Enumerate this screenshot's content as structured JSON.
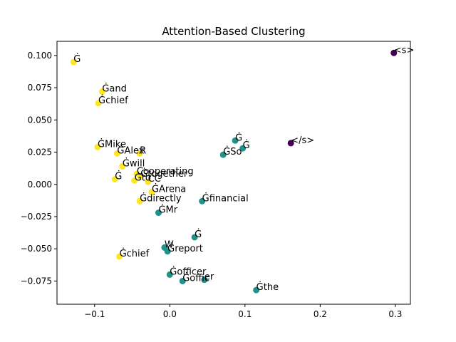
{
  "chart_data": {
    "type": "scatter",
    "title": "Attention-Based Clustering",
    "xlabel": "",
    "ylabel": "",
    "xlim": [
      -0.15,
      0.32
    ],
    "ylim": [
      -0.093,
      0.111
    ],
    "xticks": [
      -0.1,
      0.0,
      0.1,
      0.2,
      0.3
    ],
    "xtick_labels": [
      "−0.1",
      "0.0",
      "0.1",
      "0.2",
      "0.3"
    ],
    "yticks": [
      -0.075,
      -0.05,
      -0.025,
      0.0,
      0.025,
      0.05,
      0.075,
      0.1
    ],
    "ytick_labels": [
      "−0.075",
      "−0.050",
      "−0.025",
      "0.000",
      "0.025",
      "0.050",
      "0.075",
      "0.100"
    ],
    "grid": false,
    "cluster_colors": {
      "0": "#440154",
      "1": "#21918c",
      "2": "#fde725"
    },
    "points": [
      {
        "x": 0.298,
        "y": 0.102,
        "label": "<s>",
        "cluster": 0
      },
      {
        "x": 0.161,
        "y": 0.032,
        "label": "</s>",
        "cluster": 0
      },
      {
        "x": -0.128,
        "y": 0.095,
        "label": "Ġ",
        "cluster": 2
      },
      {
        "x": -0.09,
        "y": 0.072,
        "label": "Ġand",
        "cluster": 2
      },
      {
        "x": -0.095,
        "y": 0.063,
        "label": "Ġchief",
        "cluster": 2
      },
      {
        "x": -0.096,
        "y": 0.029,
        "label": "ĠMike",
        "cluster": 2
      },
      {
        "x": -0.07,
        "y": 0.024,
        "label": "ĠAlex",
        "cluster": 2
      },
      {
        "x": -0.04,
        "y": 0.024,
        "label": "R",
        "cluster": 2
      },
      {
        "x": -0.063,
        "y": 0.014,
        "label": "Ġwill",
        "cluster": 2
      },
      {
        "x": -0.044,
        "y": 0.008,
        "label": "Cooperating",
        "cluster": 2
      },
      {
        "x": -0.039,
        "y": 0.006,
        "label": "Ġtogether",
        "cluster": 2
      },
      {
        "x": -0.047,
        "y": 0.003,
        "label": "Ġto",
        "cluster": 2
      },
      {
        "x": -0.029,
        "y": 0.002,
        "label": "CC",
        "cluster": 2
      },
      {
        "x": -0.073,
        "y": 0.004,
        "label": "Ġ",
        "cluster": 2
      },
      {
        "x": -0.024,
        "y": -0.006,
        "label": "ĠArena",
        "cluster": 2
      },
      {
        "x": -0.04,
        "y": -0.013,
        "label": "Ġdirectly",
        "cluster": 2
      },
      {
        "x": -0.067,
        "y": -0.056,
        "label": "Ġchief",
        "cluster": 2
      },
      {
        "x": 0.087,
        "y": 0.034,
        "label": "Ġ",
        "cluster": 1
      },
      {
        "x": 0.097,
        "y": 0.028,
        "label": "Ġ",
        "cluster": 1
      },
      {
        "x": 0.071,
        "y": 0.023,
        "label": "ĠSo",
        "cluster": 1
      },
      {
        "x": 0.043,
        "y": -0.013,
        "label": "Ġfinancial",
        "cluster": 1
      },
      {
        "x": -0.015,
        "y": -0.022,
        "label": "ĠMr",
        "cluster": 1
      },
      {
        "x": 0.033,
        "y": -0.041,
        "label": "Ġ",
        "cluster": 1
      },
      {
        "x": -0.007,
        "y": -0.049,
        "label": "W",
        "cluster": 1
      },
      {
        "x": -0.003,
        "y": -0.052,
        "label": "Ġreport",
        "cluster": 1
      },
      {
        "x": 0.0,
        "y": -0.07,
        "label": "Ġofficer",
        "cluster": 1
      },
      {
        "x": 0.017,
        "y": -0.075,
        "label": "Ġoffic",
        "cluster": 1
      },
      {
        "x": 0.046,
        "y": -0.074,
        "label": "er",
        "cluster": 1
      },
      {
        "x": 0.115,
        "y": -0.082,
        "label": "Ġthe",
        "cluster": 1
      }
    ]
  }
}
